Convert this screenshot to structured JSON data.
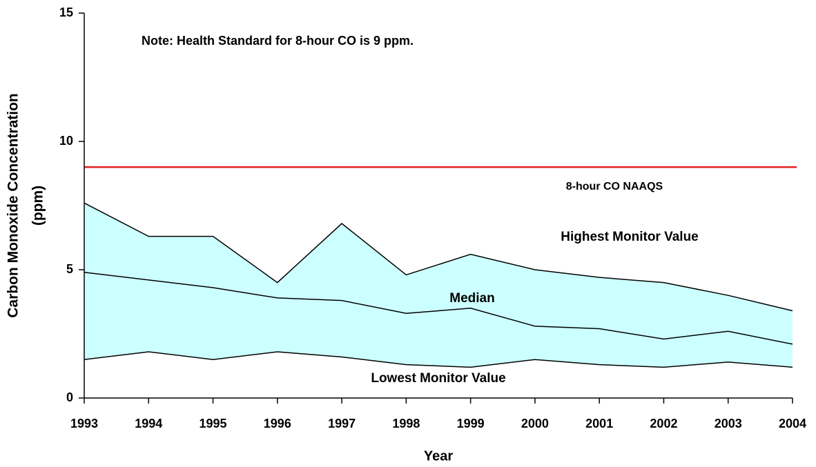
{
  "chart_data": {
    "type": "area",
    "note": "Note: Health Standard for 8-hour CO is 9 ppm.",
    "x_label": "Year",
    "y_label": [
      "Carbon Monoxide Concentration",
      "(ppm)"
    ],
    "x": [
      1993,
      1994,
      1995,
      1996,
      1997,
      1998,
      1999,
      2000,
      2001,
      2002,
      2003,
      2004
    ],
    "xlim": [
      1993,
      2004
    ],
    "ylim": [
      0,
      15
    ],
    "yticks": [
      0,
      5,
      10,
      15
    ],
    "band_fill": "#ccffff",
    "series": [
      {
        "name": "Highest Monitor Value",
        "color": "#000000",
        "values": [
          7.6,
          6.3,
          6.3,
          4.5,
          6.8,
          4.8,
          5.6,
          5.0,
          4.7,
          4.5,
          4.0,
          3.4
        ]
      },
      {
        "name": "Median",
        "color": "#000000",
        "values": [
          4.9,
          4.6,
          4.3,
          3.9,
          3.8,
          3.3,
          3.5,
          2.8,
          2.7,
          2.3,
          2.6,
          2.1
        ]
      },
      {
        "name": "Lowest Monitor Value",
        "color": "#000000",
        "values": [
          1.5,
          1.8,
          1.5,
          1.8,
          1.6,
          1.3,
          1.2,
          1.5,
          1.3,
          1.2,
          1.4,
          1.2
        ]
      }
    ],
    "standard": {
      "name": "8-hour CO NAAQS",
      "value": 9,
      "color": "#e02020"
    }
  }
}
